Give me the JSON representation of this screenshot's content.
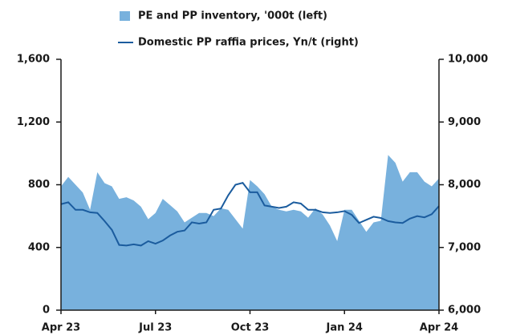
{
  "chart_data": {
    "type": "area",
    "categories": [
      "Apr 23",
      null,
      null,
      null,
      null,
      null,
      null,
      null,
      null,
      null,
      null,
      null,
      null,
      "Jul 23",
      null,
      null,
      null,
      null,
      null,
      null,
      null,
      null,
      null,
      null,
      null,
      null,
      "Oct 23",
      null,
      null,
      null,
      null,
      null,
      null,
      null,
      null,
      null,
      null,
      null,
      null,
      "Jan 24",
      null,
      null,
      null,
      null,
      null,
      null,
      null,
      null,
      null,
      null,
      null,
      null,
      "Apr 24"
    ],
    "series": [
      {
        "name": "PE and PP inventory, '000t (left)",
        "type": "area",
        "color": "#78b1dd",
        "values": [
          790,
          850,
          800,
          750,
          640,
          880,
          810,
          790,
          710,
          720,
          700,
          660,
          580,
          620,
          710,
          670,
          630,
          560,
          590,
          620,
          620,
          600,
          650,
          640,
          580,
          520,
          830,
          790,
          740,
          660,
          640,
          630,
          640,
          630,
          590,
          650,
          610,
          540,
          440,
          640,
          640,
          570,
          500,
          560,
          570,
          990,
          940,
          820,
          880,
          880,
          820,
          790,
          840
        ]
      },
      {
        "name": "Domestic PP raffia prices, Yn/t (right)",
        "type": "line",
        "axis": "y2",
        "color": "#1b5c9e",
        "values": [
          7690,
          7720,
          7600,
          7600,
          7560,
          7550,
          7420,
          7280,
          7040,
          7030,
          7050,
          7030,
          7100,
          7060,
          7110,
          7190,
          7250,
          7270,
          7400,
          7380,
          7400,
          7600,
          7620,
          7830,
          8000,
          8030,
          7880,
          7880,
          7670,
          7650,
          7630,
          7650,
          7720,
          7700,
          7600,
          7600,
          7560,
          7550,
          7560,
          7580,
          7520,
          7390,
          7440,
          7490,
          7470,
          7420,
          7400,
          7390,
          7460,
          7500,
          7480,
          7530,
          7660
        ]
      }
    ],
    "ylim": [
      0,
      1600
    ],
    "yticks": [
      0,
      400,
      800,
      {
        "value": 1200,
        "label": "1,200"
      },
      {
        "value": 1600,
        "label": "1,600"
      }
    ],
    "y2lim": [
      6000,
      10000
    ],
    "y2ticks": [
      {
        "value": 6000,
        "label": "6,000"
      },
      {
        "value": 7000,
        "label": "7,000"
      },
      {
        "value": 8000,
        "label": "8,000"
      },
      {
        "value": 9000,
        "label": "9,000"
      },
      {
        "value": 10000,
        "label": "10,000"
      }
    ]
  }
}
